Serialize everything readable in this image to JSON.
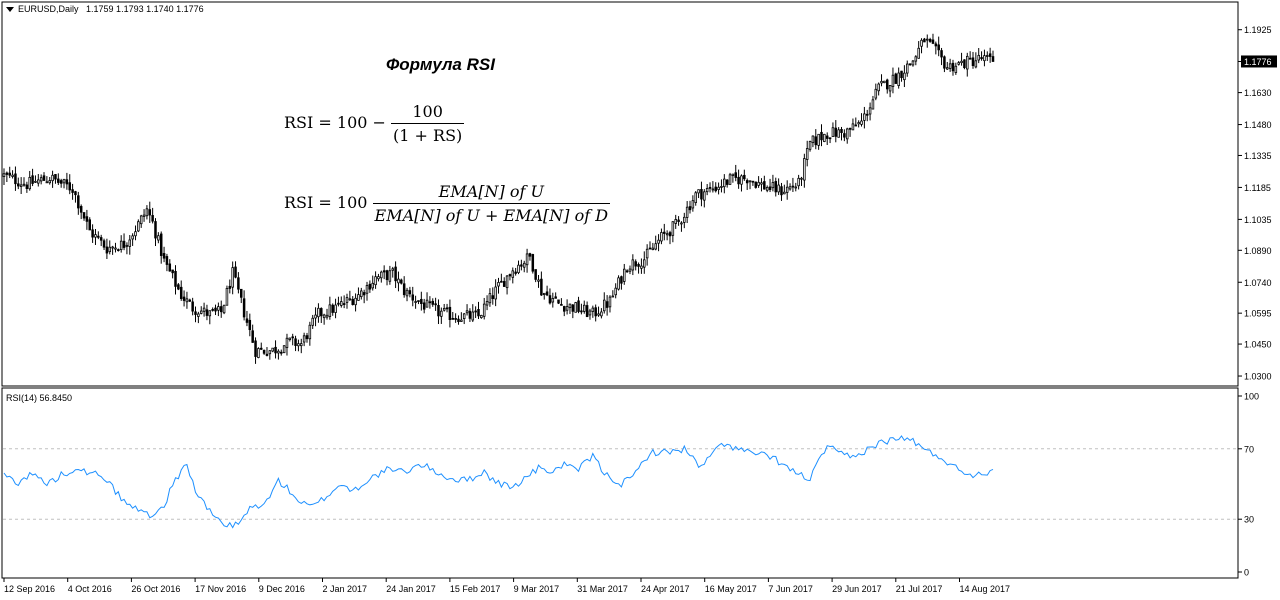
{
  "header": {
    "symbol": "EURUSD,Daily",
    "ohlc": "1.1759 1.1793 1.1740 1.1776"
  },
  "rsi_header": {
    "label": "RSI(14) 56.8450"
  },
  "annotation": {
    "title": "Формула RSI",
    "f1_lhs": "RSI = 100 −",
    "f1_num": "100",
    "f1_den": "(1 + RS)",
    "f2_lhs": "RSI = 100",
    "f2_num": "EMA[N] of U",
    "f2_den": "EMA[N] of U + EMA[N] of D"
  },
  "colors": {
    "candle": "#000000",
    "rsi_line": "#1e90ff",
    "level_line": "#c0c0c0",
    "price_tag_bg": "#000000",
    "price_tag_text": "#ffffff",
    "frame": "#000000"
  },
  "chart_data": [
    {
      "type": "candlestick",
      "title": "EURUSD,Daily",
      "current_price": 1.1776,
      "current_price_label": "1.1776",
      "ylim": [
        1.0272,
        1.198
      ],
      "yticks": [
        "1.1925",
        "1.1776",
        "1.1630",
        "1.1480",
        "1.1335",
        "1.1185",
        "1.1035",
        "1.0890",
        "1.0740",
        "1.0595",
        "1.0450",
        "1.0300"
      ],
      "xticks": [
        "12 Sep 2016",
        "4 Oct 2016",
        "26 Oct 2016",
        "17 Nov 2016",
        "9 Dec 2016",
        "2 Jan 2017",
        "24 Jan 2017",
        "15 Feb 2017",
        "9 Mar 2017",
        "31 Mar 2017",
        "24 Apr 2017",
        "16 May 2017",
        "7 Jun 2017",
        "29 Jun 2017",
        "21 Jul 2017",
        "14 Aug 2017"
      ],
      "close_path": [
        [
          0,
          1.124
        ],
        [
          8,
          1.12
        ],
        [
          16,
          1.123
        ],
        [
          24,
          1.118
        ],
        [
          30,
          1.098
        ],
        [
          36,
          1.09
        ],
        [
          42,
          1.092
        ],
        [
          46,
          1.099
        ],
        [
          50,
          1.108
        ],
        [
          52,
          1.102
        ],
        [
          56,
          1.084
        ],
        [
          62,
          1.068
        ],
        [
          66,
          1.062
        ],
        [
          72,
          1.059
        ],
        [
          76,
          1.06
        ],
        [
          80,
          1.078
        ],
        [
          84,
          1.06
        ],
        [
          88,
          1.042
        ],
        [
          94,
          1.042
        ],
        [
          100,
          1.046
        ],
        [
          104,
          1.045
        ],
        [
          110,
          1.059
        ],
        [
          116,
          1.062
        ],
        [
          124,
          1.068
        ],
        [
          130,
          1.076
        ],
        [
          136,
          1.078
        ],
        [
          140,
          1.07
        ],
        [
          146,
          1.064
        ],
        [
          152,
          1.06
        ],
        [
          158,
          1.058
        ],
        [
          166,
          1.058
        ],
        [
          172,
          1.07
        ],
        [
          178,
          1.08
        ],
        [
          184,
          1.086
        ],
        [
          188,
          1.07
        ],
        [
          194,
          1.064
        ],
        [
          200,
          1.062
        ],
        [
          206,
          1.059
        ],
        [
          212,
          1.065
        ],
        [
          218,
          1.082
        ],
        [
          224,
          1.085
        ],
        [
          230,
          1.095
        ],
        [
          236,
          1.102
        ],
        [
          242,
          1.115
        ],
        [
          248,
          1.118
        ],
        [
          254,
          1.122
        ],
        [
          260,
          1.123
        ],
        [
          266,
          1.119
        ],
        [
          272,
          1.117
        ],
        [
          278,
          1.12
        ],
        [
          282,
          1.139
        ],
        [
          288,
          1.144
        ],
        [
          294,
          1.144
        ],
        [
          300,
          1.149
        ],
        [
          306,
          1.165
        ],
        [
          312,
          1.17
        ],
        [
          318,
          1.178
        ],
        [
          322,
          1.188
        ],
        [
          326,
          1.182
        ],
        [
          330,
          1.175
        ],
        [
          336,
          1.177
        ],
        [
          342,
          1.179
        ],
        [
          346,
          1.1776
        ]
      ]
    },
    {
      "type": "line",
      "title": "RSI(14) 56.8450",
      "ylim": [
        0,
        100
      ],
      "yticks": [
        "100",
        "70",
        "30",
        "0"
      ],
      "levels": [
        70,
        30
      ],
      "path": [
        [
          0,
          55
        ],
        [
          5,
          51
        ],
        [
          10,
          56
        ],
        [
          15,
          50
        ],
        [
          20,
          55
        ],
        [
          26,
          60
        ],
        [
          30,
          55
        ],
        [
          34,
          56
        ],
        [
          38,
          48
        ],
        [
          42,
          40
        ],
        [
          46,
          36
        ],
        [
          52,
          32
        ],
        [
          56,
          38
        ],
        [
          60,
          53
        ],
        [
          64,
          61
        ],
        [
          67,
          46
        ],
        [
          72,
          34
        ],
        [
          78,
          26
        ],
        [
          82,
          27
        ],
        [
          86,
          36
        ],
        [
          92,
          40
        ],
        [
          96,
          52
        ],
        [
          100,
          46
        ],
        [
          104,
          39
        ],
        [
          108,
          37
        ],
        [
          112,
          42
        ],
        [
          118,
          50
        ],
        [
          122,
          46
        ],
        [
          128,
          53
        ],
        [
          134,
          58
        ],
        [
          140,
          57
        ],
        [
          146,
          61
        ],
        [
          150,
          58
        ],
        [
          156,
          53
        ],
        [
          162,
          52
        ],
        [
          168,
          57
        ],
        [
          172,
          51
        ],
        [
          178,
          48
        ],
        [
          182,
          53
        ],
        [
          188,
          60
        ],
        [
          192,
          56
        ],
        [
          196,
          62
        ],
        [
          200,
          57
        ],
        [
          206,
          66
        ],
        [
          210,
          56
        ],
        [
          216,
          50
        ],
        [
          220,
          54
        ],
        [
          226,
          68
        ],
        [
          232,
          68
        ],
        [
          238,
          70
        ],
        [
          244,
          59
        ],
        [
          248,
          68
        ],
        [
          252,
          73
        ],
        [
          258,
          69
        ],
        [
          264,
          67
        ],
        [
          270,
          64
        ],
        [
          276,
          57
        ],
        [
          282,
          53
        ],
        [
          288,
          72
        ],
        [
          292,
          67
        ],
        [
          298,
          65
        ],
        [
          302,
          70
        ],
        [
          306,
          73
        ],
        [
          312,
          76
        ],
        [
          318,
          75
        ],
        [
          322,
          69
        ],
        [
          328,
          65
        ],
        [
          334,
          58
        ],
        [
          340,
          55
        ],
        [
          346,
          58
        ]
      ]
    }
  ]
}
